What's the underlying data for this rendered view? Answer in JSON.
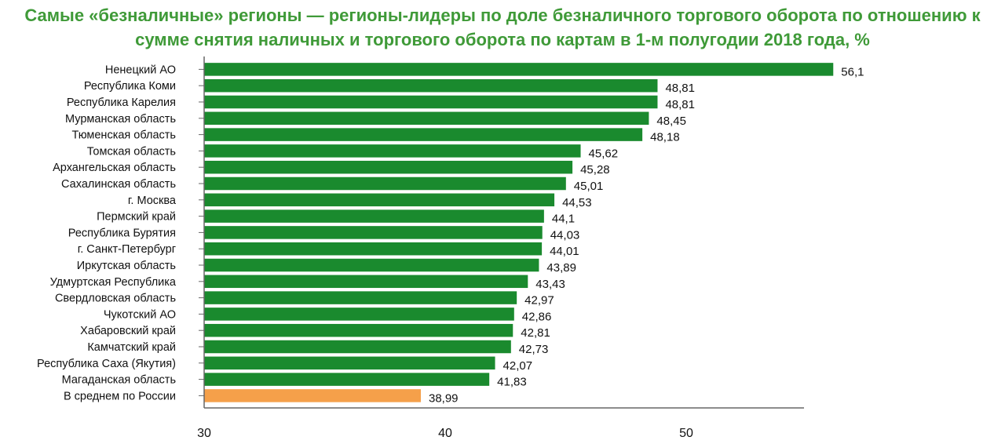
{
  "chart_data": {
    "type": "bar",
    "orientation": "horizontal",
    "title": "Самые «безналичные» регионы — регионы-лидеры по доле безналичного торгового оборота по отношению к сумме снятия наличных и торгового оборота по картам в 1-м полугодии 2018 года, %",
    "xlabel": "",
    "ylabel": "",
    "xlim": [
      30,
      55
    ],
    "x_ticks": [
      30,
      40,
      50
    ],
    "grid": false,
    "categories": [
      "Ненецкий АО",
      "Республика Коми",
      "Республика Карелия",
      "Мурманская область",
      "Тюменская область",
      "Томская область",
      "Архангельская область",
      "Сахалинская область",
      "г. Москва",
      "Пермский край",
      "Республика Бурятия",
      "г. Санкт-Петербург",
      "Иркутская область",
      "Удмуртская Республика",
      "Свердловская область",
      "Чукотский АО",
      "Хабаровский край",
      "Камчатский край",
      "Республика Саха (Якутия)",
      "Магаданская область",
      "В среднем по России"
    ],
    "values": [
      56.1,
      48.81,
      48.81,
      48.45,
      48.18,
      45.62,
      45.28,
      45.01,
      44.53,
      44.1,
      44.03,
      44.01,
      43.89,
      43.43,
      42.97,
      42.86,
      42.81,
      42.73,
      42.07,
      41.83,
      38.99
    ],
    "value_labels": [
      "56,1",
      "48,81",
      "48,81",
      "48,45",
      "48,18",
      "45,62",
      "45,28",
      "45,01",
      "44,53",
      "44,1",
      "44,03",
      "44,01",
      "43,89",
      "43,43",
      "42,97",
      "42,86",
      "42,81",
      "42,73",
      "42,07",
      "41,83",
      "38,99"
    ],
    "highlight_index": 20,
    "colors": {
      "bar": "#1a8a2e",
      "highlight": "#f5a04a",
      "title": "#3f9a38",
      "axis": "#666666"
    }
  }
}
